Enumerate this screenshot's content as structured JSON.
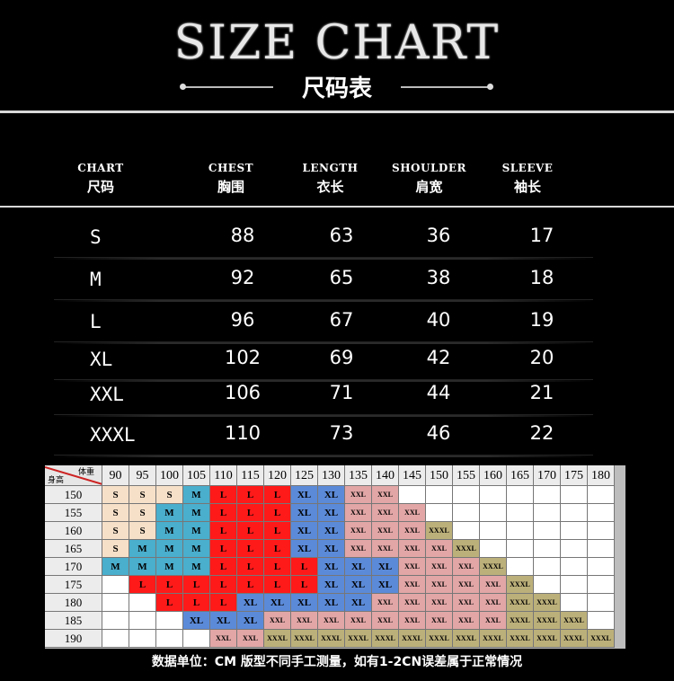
{
  "title": "SIZE CHART",
  "subtitle": "尺码表",
  "headers": [
    {
      "en": "CHART",
      "zh": "尺码"
    },
    {
      "en": "CHEST",
      "zh": "胸围"
    },
    {
      "en": "LENGTH",
      "zh": "衣长"
    },
    {
      "en": "SHOULDER",
      "zh": "肩宽"
    },
    {
      "en": "SLEEVE",
      "zh": "袖长"
    }
  ],
  "rows": [
    [
      "S",
      "88",
      "63",
      "36",
      "17"
    ],
    [
      "M",
      "92",
      "65",
      "38",
      "18"
    ],
    [
      "L",
      "96",
      "67",
      "40",
      "19"
    ],
    [
      "XL",
      "102",
      "69",
      "42",
      "20"
    ],
    [
      "XXL",
      "106",
      "71",
      "44",
      "21"
    ],
    [
      "XXXL",
      "110",
      "73",
      "46",
      "22"
    ]
  ],
  "grid": {
    "corner_top": "体重",
    "corner_bottom": "身高",
    "weights": [
      "90",
      "95",
      "100",
      "105",
      "110",
      "115",
      "120",
      "125",
      "130",
      "135",
      "140",
      "145",
      "150",
      "155",
      "160",
      "165",
      "170",
      "175",
      "180"
    ],
    "heights": [
      "150",
      "155",
      "160",
      "165",
      "170",
      "175",
      "180",
      "185",
      "190"
    ],
    "colors": {
      "S": "#f6e0c8",
      "M": "#4aaecd",
      "L": "#ff1a1a",
      "XL": "#5b8ad8",
      "XXL": "#e2a6a6",
      "XXXL": "#bcb07a",
      "blank": "#ffffff"
    },
    "cells": [
      [
        "S",
        "S",
        "S",
        "M",
        "L",
        "L",
        "L",
        "XL",
        "XL",
        "XXL",
        "XXL",
        "",
        "",
        "",
        "",
        "",
        "",
        "",
        ""
      ],
      [
        "S",
        "S",
        "M",
        "M",
        "L",
        "L",
        "L",
        "XL",
        "XL",
        "XXL",
        "XXL",
        "XXL",
        "",
        "",
        "",
        "",
        "",
        "",
        ""
      ],
      [
        "S",
        "S",
        "M",
        "M",
        "L",
        "L",
        "L",
        "XL",
        "XL",
        "XXL",
        "XXL",
        "XXL",
        "XXXL",
        "",
        "",
        "",
        "",
        "",
        ""
      ],
      [
        "S",
        "M",
        "M",
        "M",
        "L",
        "L",
        "L",
        "XL",
        "XL",
        "XXL",
        "XXL",
        "XXL",
        "XXL",
        "XXXL",
        "",
        "",
        "",
        "",
        ""
      ],
      [
        "M",
        "M",
        "M",
        "M",
        "L",
        "L",
        "L",
        "L",
        "XL",
        "XL",
        "XL",
        "XXL",
        "XXL",
        "XXL",
        "XXXL",
        "",
        "",
        "",
        ""
      ],
      [
        "",
        "L",
        "L",
        "L",
        "L",
        "L",
        "L",
        "L",
        "XL",
        "XL",
        "XL",
        "XXL",
        "XXL",
        "XXL",
        "XXL",
        "XXXL",
        "",
        "",
        ""
      ],
      [
        "",
        "",
        "L",
        "L",
        "L",
        "XL",
        "XL",
        "XL",
        "XL",
        "XL",
        "XXL",
        "XXL",
        "XXL",
        "XXL",
        "XXL",
        "XXXL",
        "XXXL",
        "",
        ""
      ],
      [
        "",
        "",
        "",
        "XL",
        "XL",
        "XL",
        "XXL",
        "XXL",
        "XXL",
        "XXL",
        "XXL",
        "XXL",
        "XXL",
        "XXL",
        "XXL",
        "XXXL",
        "XXXL",
        "XXXL",
        ""
      ],
      [
        "",
        "",
        "",
        "",
        "XXL",
        "XXL",
        "XXXL",
        "XXXL",
        "XXXL",
        "XXXL",
        "XXXL",
        "XXXL",
        "XXXL",
        "XXXL",
        "XXXL",
        "XXXL",
        "XXXL",
        "XXXL",
        "XXXL"
      ]
    ]
  },
  "note": "数据单位：CM 版型不同手工测量，如有1-2CN误差属于正常情况"
}
